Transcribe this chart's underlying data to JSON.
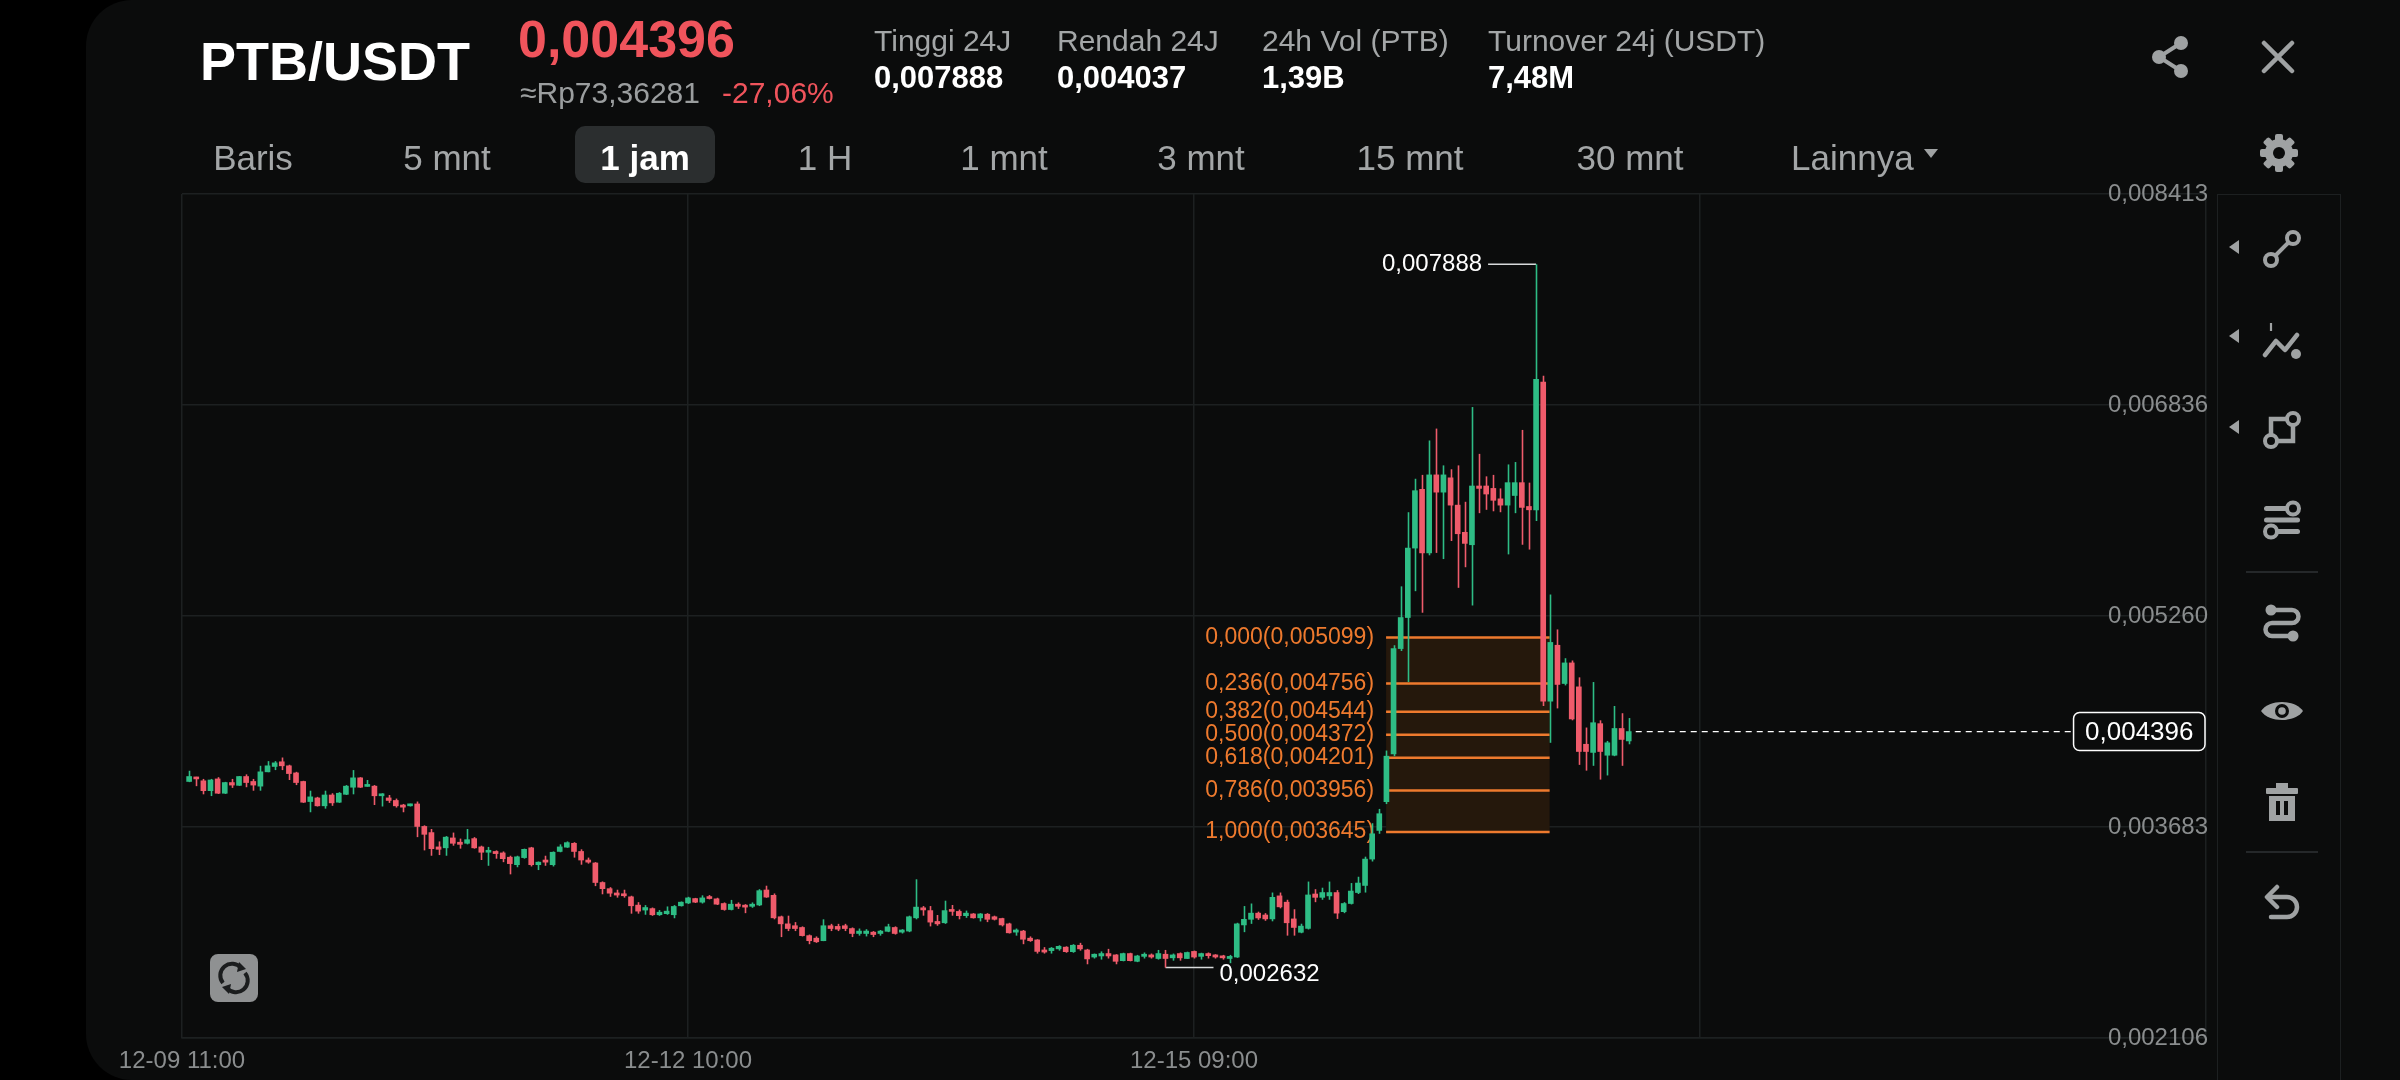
{
  "chart_data": {
    "type": "candlestick",
    "title": "PTB/USDT",
    "subtitle": "0,004396",
    "annotations": [
      "≈Rp73,36281",
      "-27,06%",
      "Tinggi 24J",
      "0,007888",
      "Rendah 24J",
      "0,004037",
      "24h Vol (PTB)",
      "1,39B",
      "Turnover 24j (USDT)",
      "7,48M",
      "Baris",
      "5 mnt",
      "1 jam",
      "1 H",
      "1 mnt",
      "3 mnt",
      "15 mnt",
      "30 mnt",
      "Lainnya",
      {
        "text": "0,007888",
        "x": "--12-17T09:00",
        "y": 0.007888
      },
      {
        "text": "0,002632",
        "x": "--12-15T05:00",
        "y": 0.002632
      }
    ],
    "x": [
      "--12-09T12:00",
      "--12-09T13:00",
      "--12-09T14:00",
      "--12-09T15:00",
      "--12-09T16:00",
      "--12-09T17:00",
      "--12-09T18:00",
      "--12-09T19:00",
      "--12-09T20:00",
      "--12-09T21:00",
      "--12-09T22:00",
      "--12-09T23:00",
      "--12-10T00:00",
      "--12-10T01:00",
      "--12-10T02:00",
      "--12-10T03:00",
      "--12-10T04:00",
      "--12-10T05:00",
      "--12-10T06:00",
      "--12-10T07:00",
      "--12-10T08:00",
      "--12-10T09:00",
      "--12-10T10:00",
      "--12-10T11:00",
      "--12-10T12:00",
      "--12-10T13:00",
      "--12-10T14:00",
      "--12-10T15:00",
      "--12-10T16:00",
      "--12-10T17:00",
      "--12-10T18:00",
      "--12-10T19:00",
      "--12-10T20:00",
      "--12-10T21:00",
      "--12-10T22:00",
      "--12-10T23:00",
      "--12-11T00:00",
      "--12-11T01:00",
      "--12-11T02:00",
      "--12-11T03:00",
      "--12-11T04:00",
      "--12-11T05:00",
      "--12-11T06:00",
      "--12-11T07:00",
      "--12-11T08:00",
      "--12-11T09:00",
      "--12-11T10:00",
      "--12-11T11:00",
      "--12-11T12:00",
      "--12-11T13:00",
      "--12-11T14:00",
      "--12-11T15:00",
      "--12-11T16:00",
      "--12-11T17:00",
      "--12-11T18:00",
      "--12-11T19:00",
      "--12-11T20:00",
      "--12-11T21:00",
      "--12-11T22:00",
      "--12-11T23:00",
      "--12-12T00:00",
      "--12-12T01:00",
      "--12-12T02:00",
      "--12-12T03:00",
      "--12-12T04:00",
      "--12-12T05:00",
      "--12-12T06:00",
      "--12-12T07:00",
      "--12-12T08:00",
      "--12-12T09:00",
      "--12-12T10:00",
      "--12-12T11:00",
      "--12-12T12:00",
      "--12-12T13:00",
      "--12-12T14:00",
      "--12-12T15:00",
      "--12-12T16:00",
      "--12-12T17:00",
      "--12-12T18:00",
      "--12-12T19:00",
      "--12-12T20:00",
      "--12-12T21:00",
      "--12-12T22:00",
      "--12-12T23:00",
      "--12-13T00:00",
      "--12-13T01:00",
      "--12-13T02:00",
      "--12-13T03:00",
      "--12-13T04:00",
      "--12-13T05:00",
      "--12-13T06:00",
      "--12-13T07:00",
      "--12-13T08:00",
      "--12-13T09:00",
      "--12-13T10:00",
      "--12-13T11:00",
      "--12-13T12:00",
      "--12-13T13:00",
      "--12-13T14:00",
      "--12-13T15:00",
      "--12-13T16:00",
      "--12-13T17:00",
      "--12-13T18:00",
      "--12-13T19:00",
      "--12-13T20:00",
      "--12-13T21:00",
      "--12-13T22:00",
      "--12-13T23:00",
      "--12-14T00:00",
      "--12-14T01:00",
      "--12-14T02:00",
      "--12-14T03:00",
      "--12-14T04:00",
      "--12-14T05:00",
      "--12-14T06:00",
      "--12-14T07:00",
      "--12-14T08:00",
      "--12-14T09:00",
      "--12-14T10:00",
      "--12-14T11:00",
      "--12-14T12:00",
      "--12-14T13:00",
      "--12-14T14:00",
      "--12-14T15:00",
      "--12-14T16:00",
      "--12-14T17:00",
      "--12-14T18:00",
      "--12-14T19:00",
      "--12-14T20:00",
      "--12-14T21:00",
      "--12-14T22:00",
      "--12-14T23:00",
      "--12-15T00:00",
      "--12-15T01:00",
      "--12-15T02:00",
      "--12-15T03:00",
      "--12-15T04:00",
      "--12-15T05:00",
      "--12-15T06:00",
      "--12-15T07:00",
      "--12-15T08:00",
      "--12-15T09:00",
      "--12-15T10:00",
      "--12-15T11:00",
      "--12-15T12:00",
      "--12-15T13:00",
      "--12-15T14:00",
      "--12-15T15:00",
      "--12-15T16:00",
      "--12-15T17:00",
      "--12-15T18:00",
      "--12-15T19:00",
      "--12-15T20:00",
      "--12-15T21:00",
      "--12-15T22:00",
      "--12-15T23:00",
      "--12-16T00:00",
      "--12-16T01:00",
      "--12-16T02:00",
      "--12-16T03:00",
      "--12-16T04:00",
      "--12-16T05:00",
      "--12-16T06:00",
      "--12-16T07:00",
      "--12-16T08:00",
      "--12-16T09:00",
      "--12-16T10:00",
      "--12-16T11:00",
      "--12-16T12:00",
      "--12-16T13:00",
      "--12-16T14:00",
      "--12-16T15:00",
      "--12-16T16:00",
      "--12-16T17:00",
      "--12-16T18:00",
      "--12-16T19:00",
      "--12-16T20:00",
      "--12-16T21:00",
      "--12-16T22:00",
      "--12-16T23:00",
      "--12-17T00:00",
      "--12-17T01:00",
      "--12-17T02:00",
      "--12-17T03:00",
      "--12-17T04:00",
      "--12-17T05:00",
      "--12-17T06:00",
      "--12-17T07:00",
      "--12-17T08:00",
      "--12-17T09:00",
      "--12-17T10:00",
      "--12-17T11:00",
      "--12-17T12:00",
      "--12-17T13:00",
      "--12-17T14:00",
      "--12-17T15:00",
      "--12-17T16:00",
      "--12-17T17:00",
      "--12-17T18:00",
      "--12-17T19:00",
      "--12-17T20:00",
      "--12-17T21:00",
      "--12-17T22:00"
    ],
    "ohlc": [
      [
        0.004023,
        0.004103,
        0.004018,
        0.00406
      ],
      [
        0.004055,
        0.004058,
        0.003988,
        0.004042
      ],
      [
        0.004028,
        0.004042,
        0.003927,
        0.003954
      ],
      [
        0.003954,
        0.004042,
        0.003914,
        0.004034
      ],
      [
        0.004042,
        0.004055,
        0.00393,
        0.003935
      ],
      [
        0.003935,
        0.00402,
        0.00393,
        0.004015
      ],
      [
        0.004015,
        0.004042,
        0.003975,
        0.003996
      ],
      [
        0.003994,
        0.004063,
        0.00399,
        0.00406
      ],
      [
        0.00406,
        0.004076,
        0.00398,
        0.004015
      ],
      [
        0.004023,
        0.004042,
        0.003954,
        0.003996
      ],
      [
        0.003988,
        0.00414,
        0.003954,
        0.004095
      ],
      [
        0.004095,
        0.004175,
        0.004092,
        0.00414
      ],
      [
        0.004135,
        0.004175,
        0.004108,
        0.004162
      ],
      [
        0.00417,
        0.004202,
        0.004108,
        0.00414
      ],
      [
        0.00414,
        0.004148,
        0.004034,
        0.004082
      ],
      [
        0.004087,
        0.004095,
        0.003996,
        0.004015
      ],
      [
        0.004023,
        0.004028,
        0.003863,
        0.003868
      ],
      [
        0.003873,
        0.003954,
        0.003793,
        0.003908
      ],
      [
        0.0039,
        0.003908,
        0.003836,
        0.003841
      ],
      [
        0.003841,
        0.003954,
        0.00382,
        0.003922
      ],
      [
        0.003922,
        0.003935,
        0.003841,
        0.003863
      ],
      [
        0.003868,
        0.003943,
        0.003863,
        0.003935
      ],
      [
        0.003927,
        0.003996,
        0.003922,
        0.003988
      ],
      [
        0.00398,
        0.004108,
        0.003927,
        0.00405
      ],
      [
        0.00405,
        0.004055,
        0.003975,
        0.00398
      ],
      [
        0.003986,
        0.004034,
        0.003984,
        0.003996
      ],
      [
        0.003988,
        0.003996,
        0.003847,
        0.003916
      ],
      [
        0.003916,
        0.003935,
        0.003836,
        0.003927
      ],
      [
        0.0039,
        0.003922,
        0.003863,
        0.003881
      ],
      [
        0.003881,
        0.003895,
        0.003828,
        0.003841
      ],
      [
        0.003847,
        0.003855,
        0.003793,
        0.003831
      ],
      [
        0.003841,
        0.003857,
        0.003836,
        0.003855
      ],
      [
        0.003855,
        0.003873,
        0.003607,
        0.003687
      ],
      [
        0.003687,
        0.003695,
        0.003508,
        0.003628
      ],
      [
        0.003641,
        0.003668,
        0.003468,
        0.003521
      ],
      [
        0.003534,
        0.003575,
        0.003473,
        0.003516
      ],
      [
        0.003527,
        0.003615,
        0.003468,
        0.003607
      ],
      [
        0.003601,
        0.003641,
        0.003543,
        0.003561
      ],
      [
        0.003569,
        0.003596,
        0.003521,
        0.003553
      ],
      [
        0.003561,
        0.003668,
        0.003553,
        0.003588
      ],
      [
        0.003596,
        0.003607,
        0.003521,
        0.003527
      ],
      [
        0.003534,
        0.003543,
        0.003436,
        0.003494
      ],
      [
        0.003494,
        0.003534,
        0.003393,
        0.003508
      ],
      [
        0.0035,
        0.003508,
        0.003446,
        0.003484
      ],
      [
        0.003489,
        0.0035,
        0.00342,
        0.003446
      ],
      [
        0.003457,
        0.003468,
        0.003329,
        0.003409
      ],
      [
        0.003401,
        0.003468,
        0.003382,
        0.00346
      ],
      [
        0.003454,
        0.003521,
        0.003446,
        0.003516
      ],
      [
        0.003527,
        0.003534,
        0.003388,
        0.003401
      ],
      [
        0.003401,
        0.003425,
        0.003361,
        0.00342
      ],
      [
        0.003436,
        0.003468,
        0.003393,
        0.00342
      ],
      [
        0.003401,
        0.0035,
        0.003388,
        0.003494
      ],
      [
        0.0035,
        0.003553,
        0.003494,
        0.003534
      ],
      [
        0.003532,
        0.003575,
        0.003527,
        0.003566
      ],
      [
        0.003561,
        0.003569,
        0.003454,
        0.0035
      ],
      [
        0.0035,
        0.003516,
        0.003401,
        0.003436
      ],
      [
        0.003436,
        0.003454,
        0.003409,
        0.00342
      ],
      [
        0.003414,
        0.00342,
        0.003241,
        0.003268
      ],
      [
        0.003268,
        0.003276,
        0.00318,
        0.003222
      ],
      [
        0.003222,
        0.003233,
        0.003161,
        0.003188
      ],
      [
        0.00319,
        0.003214,
        0.003155,
        0.003174
      ],
      [
        0.00318,
        0.003214,
        0.003155,
        0.003169
      ],
      [
        0.003161,
        0.003169,
        0.003035,
        0.003094
      ],
      [
        0.003099,
        0.003121,
        0.003035,
        0.003054
      ],
      [
        0.003062,
        0.003099,
        0.003027,
        0.003081
      ],
      [
        0.003073,
        0.003081,
        0.003019,
        0.003027
      ],
      [
        0.003027,
        0.003062,
        0.003019,
        0.003046
      ],
      [
        0.003035,
        0.003089,
        0.003027,
        0.003054
      ],
      [
        0.003027,
        0.003099,
        0.003001,
        0.003089
      ],
      [
        0.003094,
        0.003126,
        0.003089,
        0.003121
      ],
      [
        0.003115,
        0.003161,
        0.003108,
        0.003153
      ],
      [
        0.003148,
        0.003153,
        0.003115,
        0.003121
      ],
      [
        0.003121,
        0.003172,
        0.003111,
        0.003153
      ],
      [
        0.003161,
        0.003174,
        0.003142,
        0.003148
      ],
      [
        0.003146,
        0.003154,
        0.0031,
        0.003106
      ],
      [
        0.003111,
        0.003119,
        0.003058,
        0.003066
      ],
      [
        0.003066,
        0.003138,
        0.00306,
        0.003106
      ],
      [
        0.003106,
        0.003119,
        0.003071,
        0.00309
      ],
      [
        0.003098,
        0.003106,
        0.003039,
        0.003084
      ],
      [
        0.00309,
        0.003119,
        0.003079,
        0.003106
      ],
      [
        0.0031,
        0.003218,
        0.003092,
        0.003207
      ],
      [
        0.003212,
        0.003244,
        0.003154,
        0.003159
      ],
      [
        0.003172,
        0.003186,
        0.002993,
        0.003004
      ],
      [
        0.003012,
        0.00302,
        0.00286,
        0.002959
      ],
      [
        0.002959,
        0.00302,
        0.002905,
        0.002924
      ],
      [
        0.002945,
        0.002972,
        0.002905,
        0.002924
      ],
      [
        0.002932,
        0.00294,
        0.002865,
        0.002871
      ],
      [
        0.002871,
        0.002879,
        0.002807,
        0.002833
      ],
      [
        0.002852,
        0.002865,
        0.002817,
        0.002825
      ],
      [
        0.002833,
        0.002993,
        0.00283,
        0.002945
      ],
      [
        0.002945,
        0.002959,
        0.002905,
        0.002924
      ],
      [
        0.00294,
        0.002959,
        0.002905,
        0.002919
      ],
      [
        0.002945,
        0.002959,
        0.002905,
        0.002924
      ],
      [
        0.002924,
        0.002932,
        0.00286,
        0.002887
      ],
      [
        0.002887,
        0.002924,
        0.002871,
        0.002905
      ],
      [
        0.002887,
        0.002919,
        0.002865,
        0.002905
      ],
      [
        0.002897,
        0.002905,
        0.00286,
        0.002879
      ],
      [
        0.002887,
        0.002913,
        0.002871,
        0.002905
      ],
      [
        0.002903,
        0.002959,
        0.002897,
        0.002937
      ],
      [
        0.002932,
        0.00294,
        0.002879,
        0.002887
      ],
      [
        0.002897,
        0.002919,
        0.002887,
        0.002913
      ],
      [
        0.002905,
        0.00302,
        0.002897,
        0.003012
      ],
      [
        0.003004,
        0.003292,
        0.002993,
        0.003084
      ],
      [
        0.003079,
        0.003092,
        0.00302,
        0.003063
      ],
      [
        0.003058,
        0.003092,
        0.00294,
        0.002972
      ],
      [
        0.002977,
        0.003025,
        0.002945,
        0.002959
      ],
      [
        0.002967,
        0.003132,
        0.002959,
        0.003058
      ],
      [
        0.003066,
        0.0031,
        0.00302,
        0.003052
      ],
      [
        0.003052,
        0.003066,
        0.002993,
        0.00302
      ],
      [
        0.00302,
        0.003058,
        0.003004,
        0.003039
      ],
      [
        0.003033,
        0.003039,
        0.002999,
        0.003004
      ],
      [
        0.003004,
        0.003039,
        0.002977,
        0.003033
      ],
      [
        0.003031,
        0.003039,
        0.002972,
        0.002993
      ],
      [
        0.003012,
        0.00302,
        0.002985,
        0.002993
      ],
      [
        0.002999,
        0.003004,
        0.00294,
        0.002951
      ],
      [
        0.002959,
        0.002967,
        0.002887,
        0.002892
      ],
      [
        0.002897,
        0.002924,
        0.002871,
        0.002913
      ],
      [
        0.002905,
        0.002913,
        0.002807,
        0.002844
      ],
      [
        0.002852,
        0.002865,
        0.002825,
        0.002833
      ],
      [
        0.002839,
        0.002844,
        0.002737,
        0.002753
      ],
      [
        0.002764,
        0.002785,
        0.002737,
        0.002748
      ],
      [
        0.002759,
        0.002785,
        0.002737,
        0.002777
      ],
      [
        0.002772,
        0.002799,
        0.002759,
        0.002791
      ],
      [
        0.002785,
        0.002791,
        0.002743,
        0.002751
      ],
      [
        0.002751,
        0.002807,
        0.002743,
        0.002799
      ],
      [
        0.002799,
        0.002817,
        0.002759,
        0.002772
      ],
      [
        0.002764,
        0.002772,
        0.002657,
        0.002697
      ],
      [
        0.002711,
        0.002737,
        0.0027,
        0.002732
      ],
      [
        0.002719,
        0.002753,
        0.002692,
        0.002737
      ],
      [
        0.002737,
        0.002772,
        0.0027,
        0.002719
      ],
      [
        0.002727,
        0.002732,
        0.002657,
        0.002679
      ],
      [
        0.002684,
        0.002743,
        0.002679,
        0.002737
      ],
      [
        0.002737,
        0.002743,
        0.002679,
        0.002684
      ],
      [
        0.002679,
        0.002727,
        0.002673,
        0.002719
      ],
      [
        0.002716,
        0.002745,
        0.0027,
        0.002732
      ],
      [
        0.002727,
        0.002737,
        0.0027,
        0.002711
      ],
      [
        0.0027,
        0.002764,
        0.002692,
        0.002737
      ],
      [
        0.002732,
        0.002764,
        0.002632,
        0.0027
      ],
      [
        0.002705,
        0.002737,
        0.002684,
        0.002727
      ],
      [
        0.002737,
        0.002745,
        0.002684,
        0.002705
      ],
      [
        0.0027,
        0.002751,
        0.002697,
        0.002745
      ],
      [
        0.002753,
        0.002759,
        0.0027,
        0.002711
      ],
      [
        0.002716,
        0.002743,
        0.002692,
        0.002737
      ],
      [
        0.002737,
        0.002745,
        0.0027,
        0.002721
      ],
      [
        0.002727,
        0.002732,
        0.0027,
        0.002711
      ],
      [
        0.002716,
        0.002727,
        0.002692,
        0.002705
      ],
      [
        0.0027,
        0.002727,
        0.002665,
        0.002716
      ],
      [
        0.002711,
        0.002967,
        0.002705,
        0.002959
      ],
      [
        0.002951,
        0.003092,
        0.002897,
        0.002993
      ],
      [
        0.002993,
        0.003111,
        0.002959,
        0.003039
      ],
      [
        0.003039,
        0.00305,
        0.002989,
        0.003003
      ],
      [
        0.003025,
        0.003039,
        0.002982,
        0.002996
      ],
      [
        0.002996,
        0.003193,
        0.002978,
        0.003157
      ],
      [
        0.003168,
        0.003193,
        0.003075,
        0.003086
      ],
      [
        0.003121,
        0.003139,
        0.002871,
        0.002967
      ],
      [
        0.002996,
        0.003068,
        0.002871,
        0.002932
      ],
      [
        0.002896,
        0.00296,
        0.002889,
        0.002942
      ],
      [
        0.002925,
        0.003275,
        0.002917,
        0.003175
      ],
      [
        0.003182,
        0.003218,
        0.003121,
        0.003157
      ],
      [
        0.003157,
        0.003229,
        0.003139,
        0.003193
      ],
      [
        0.003168,
        0.003275,
        0.003139,
        0.003193
      ],
      [
        0.003193,
        0.003211,
        0.002996,
        0.003039
      ],
      [
        0.00305,
        0.003121,
        0.003039,
        0.003111
      ],
      [
        0.003111,
        0.003264,
        0.003104,
        0.003204
      ],
      [
        0.003193,
        0.003311,
        0.003182,
        0.003264
      ],
      [
        0.003246,
        0.003461,
        0.003193,
        0.003443
      ],
      [
        0.003443,
        0.003711,
        0.003425,
        0.003632
      ],
      [
        0.003657,
        0.003818,
        0.003632,
        0.003782
      ],
      [
        0.003872,
        0.004254,
        0.003854,
        0.004212
      ],
      [
        0.004229,
        0.005041,
        0.004212,
        0.005016
      ],
      [
        0.005016,
        0.005481,
        0.004998,
        0.005248
      ],
      [
        0.005248,
        0.006035,
        0.004766,
        0.005767
      ],
      [
        0.005767,
        0.006285,
        0.005445,
        0.006196
      ],
      [
        0.006206,
        0.006314,
        0.005284,
        0.005731
      ],
      [
        0.005731,
        0.006571,
        0.005713,
        0.006314
      ],
      [
        0.006314,
        0.00666,
        0.005731,
        0.006185
      ],
      [
        0.006185,
        0.006385,
        0.005685,
        0.006314
      ],
      [
        0.006292,
        0.006356,
        0.00582,
        0.006088
      ],
      [
        0.006088,
        0.006385,
        0.00547,
        0.005874
      ],
      [
        0.005885,
        0.006113,
        0.005624,
        0.005802
      ],
      [
        0.005792,
        0.006821,
        0.005338,
        0.006231
      ],
      [
        0.006231,
        0.006471,
        0.006028,
        0.006213
      ],
      [
        0.006231,
        0.006303,
        0.006053,
        0.006171
      ],
      [
        0.006213,
        0.006314,
        0.006042,
        0.006124
      ],
      [
        0.006135,
        0.006213,
        0.006035,
        0.006088
      ],
      [
        0.006088,
        0.006392,
        0.00572,
        0.006256
      ],
      [
        0.00616,
        0.00641,
        0.006028,
        0.006256
      ],
      [
        0.006256,
        0.00665,
        0.005792,
        0.006071
      ],
      [
        0.006078,
        0.006256,
        0.005756,
        0.006053
      ],
      [
        0.006053,
        0.007888,
        0.00597,
        0.007029
      ],
      [
        0.007007,
        0.007054,
        0.004587,
        0.004623
      ],
      [
        0.004623,
        0.00542,
        0.004312,
        0.005062
      ],
      [
        0.005041,
        0.005159,
        0.004569,
        0.004748
      ],
      [
        0.004755,
        0.004944,
        0.004741,
        0.004909
      ],
      [
        0.004909,
        0.004927,
        0.00448,
        0.00449
      ],
      [
        0.00473,
        0.004801,
        0.004147,
        0.004247
      ],
      [
        0.004301,
        0.004426,
        0.004104,
        0.004247
      ],
      [
        0.00424,
        0.004766,
        0.00414,
        0.004462
      ],
      [
        0.004455,
        0.00448,
        0.004037,
        0.004247
      ],
      [
        0.004219,
        0.004326,
        0.004068,
        0.004312
      ],
      [
        0.004219,
        0.004587,
        0.004212,
        0.004419
      ],
      [
        0.004419,
        0.004533,
        0.00414,
        0.004337
      ],
      [
        0.004326,
        0.004497,
        0.004301,
        0.004396
      ]
    ],
    "colors": [
      "#2ebd85",
      "#ef5b6b",
      "#ef5b6b",
      "#2ebd85",
      "#ef5b6b",
      "#2ebd85",
      "#ef5b6b",
      "#2ebd85",
      "#ef5b6b",
      "#ef5b6b",
      "#2ebd85",
      "#2ebd85",
      "#2ebd85",
      "#ef5b6b",
      "#ef5b6b",
      "#ef5b6b",
      "#ef5b6b",
      "#2ebd85",
      "#ef5b6b",
      "#2ebd85",
      "#ef5b6b",
      "#2ebd85",
      "#2ebd85",
      "#2ebd85",
      "#ef5b6b",
      "#2ebd85",
      "#ef5b6b",
      "#2ebd85",
      "#ef5b6b",
      "#ef5b6b",
      "#ef5b6b",
      "#2ebd85",
      "#ef5b6b",
      "#ef5b6b",
      "#ef5b6b",
      "#ef5b6b",
      "#2ebd85",
      "#ef5b6b",
      "#ef5b6b",
      "#2ebd85",
      "#ef5b6b",
      "#ef5b6b",
      "#2ebd85",
      "#ef5b6b",
      "#ef5b6b",
      "#ef5b6b",
      "#2ebd85",
      "#2ebd85",
      "#ef5b6b",
      "#2ebd85",
      "#ef5b6b",
      "#2ebd85",
      "#2ebd85",
      "#2ebd85",
      "#ef5b6b",
      "#ef5b6b",
      "#ef5b6b",
      "#ef5b6b",
      "#ef5b6b",
      "#ef5b6b",
      "#ef5b6b",
      "#ef5b6b",
      "#ef5b6b",
      "#ef5b6b",
      "#2ebd85",
      "#ef5b6b",
      "#2ebd85",
      "#2ebd85",
      "#2ebd85",
      "#2ebd85",
      "#2ebd85",
      "#ef5b6b",
      "#2ebd85",
      "#ef5b6b",
      "#ef5b6b",
      "#ef5b6b",
      "#2ebd85",
      "#ef5b6b",
      "#ef5b6b",
      "#2ebd85",
      "#2ebd85",
      "#ef5b6b",
      "#ef5b6b",
      "#ef5b6b",
      "#ef5b6b",
      "#ef5b6b",
      "#ef5b6b",
      "#ef5b6b",
      "#ef5b6b",
      "#2ebd85",
      "#ef5b6b",
      "#ef5b6b",
      "#ef5b6b",
      "#ef5b6b",
      "#2ebd85",
      "#2ebd85",
      "#ef5b6b",
      "#2ebd85",
      "#2ebd85",
      "#ef5b6b",
      "#2ebd85",
      "#2ebd85",
      "#2ebd85",
      "#ef5b6b",
      "#ef5b6b",
      "#ef5b6b",
      "#2ebd85",
      "#ef5b6b",
      "#ef5b6b",
      "#2ebd85",
      "#ef5b6b",
      "#2ebd85",
      "#ef5b6b",
      "#ef5b6b",
      "#ef5b6b",
      "#ef5b6b",
      "#2ebd85",
      "#ef5b6b",
      "#ef5b6b",
      "#ef5b6b",
      "#ef5b6b",
      "#2ebd85",
      "#2ebd85",
      "#ef5b6b",
      "#2ebd85",
      "#ef5b6b",
      "#ef5b6b",
      "#2ebd85",
      "#2ebd85",
      "#ef5b6b",
      "#ef5b6b",
      "#2ebd85",
      "#ef5b6b",
      "#2ebd85",
      "#2ebd85",
      "#ef5b6b",
      "#2ebd85",
      "#ef5b6b",
      "#2ebd85",
      "#ef5b6b",
      "#2ebd85",
      "#ef5b6b",
      "#2ebd85",
      "#ef5b6b",
      "#ef5b6b",
      "#ef5b6b",
      "#2ebd85",
      "#2ebd85",
      "#2ebd85",
      "#2ebd85",
      "#ef5b6b",
      "#ef5b6b",
      "#2ebd85",
      "#ef5b6b",
      "#ef5b6b",
      "#ef5b6b",
      "#2ebd85",
      "#2ebd85",
      "#ef5b6b",
      "#2ebd85",
      "#2ebd85",
      "#ef5b6b",
      "#2ebd85",
      "#2ebd85",
      "#2ebd85",
      "#2ebd85",
      "#2ebd85",
      "#2ebd85",
      "#2ebd85",
      "#2ebd85",
      "#2ebd85",
      "#2ebd85",
      "#2ebd85",
      "#ef5b6b",
      "#2ebd85",
      "#ef5b6b",
      "#2ebd85",
      "#ef5b6b",
      "#ef5b6b",
      "#ef5b6b",
      "#2ebd85",
      "#ef5b6b",
      "#ef5b6b",
      "#ef5b6b",
      "#ef5b6b",
      "#2ebd85",
      "#2ebd85",
      "#ef5b6b",
      "#ef5b6b",
      "#2ebd85",
      "#ef5b6b",
      "#2ebd85",
      "#ef5b6b",
      "#2ebd85",
      "#ef5b6b",
      "#ef5b6b",
      "#ef5b6b",
      "#2ebd85",
      "#ef5b6b",
      "#2ebd85",
      "#2ebd85",
      "#ef5b6b",
      "#2ebd85"
    ],
    "xlim": [
      "--12-09T11:00",
      "--12-21T07:00"
    ],
    "xticks": [
      {
        "value": "--12-09T11:00",
        "label": "12-09 11:00"
      },
      {
        "value": "--12-12T10:00",
        "label": "12-12 10:00"
      },
      {
        "value": "--12-15T09:00",
        "label": "12-15 09:00"
      },
      {
        "value": "--12-18T08:00",
        "label": null
      }
    ],
    "ylim": [
      0.002106,
      0.008413
    ],
    "yticks": [
      {
        "value": 0.002106,
        "label": "0,002106"
      },
      {
        "value": 0.003683,
        "label": "0,003683"
      },
      {
        "value": 0.00526,
        "label": "0,005260"
      },
      {
        "value": 0.006836,
        "label": "0,006836"
      },
      {
        "value": 0.008413,
        "label": "0,008413"
      }
    ],
    "grid": true,
    "ref_lines": [
      {
        "axis": "y",
        "value": 0.005099,
        "label": "0,000(0,005099)",
        "color": "#ee7a2e"
      },
      {
        "axis": "y",
        "value": 0.004756,
        "label": "0,236(0,004756)",
        "color": "#ee7a2e"
      },
      {
        "axis": "y",
        "value": 0.004544,
        "label": "0,382(0,004544)",
        "color": "#ee7a2e"
      },
      {
        "axis": "y",
        "value": 0.004372,
        "label": "0,500(0,004372)",
        "color": "#ee7a2e"
      },
      {
        "axis": "y",
        "value": 0.004201,
        "label": "0,618(0,004201)",
        "color": "#ee7a2e"
      },
      {
        "axis": "y",
        "value": 0.003956,
        "label": "0,786(0,003956)",
        "color": "#ee7a2e"
      },
      {
        "axis": "y",
        "value": 0.003645,
        "label": "1,000(0,003645)",
        "color": "#ee7a2e"
      },
      {
        "axis": "y",
        "value": 0.004396,
        "label": "0,004396",
        "color": "#ffffff",
        "line_style": "dashed"
      }
    ],
    "bands": [
      {
        "axis": "y",
        "from": 0.003645,
        "to": 0.005099,
        "color": "#25180c"
      }
    ]
  }
}
